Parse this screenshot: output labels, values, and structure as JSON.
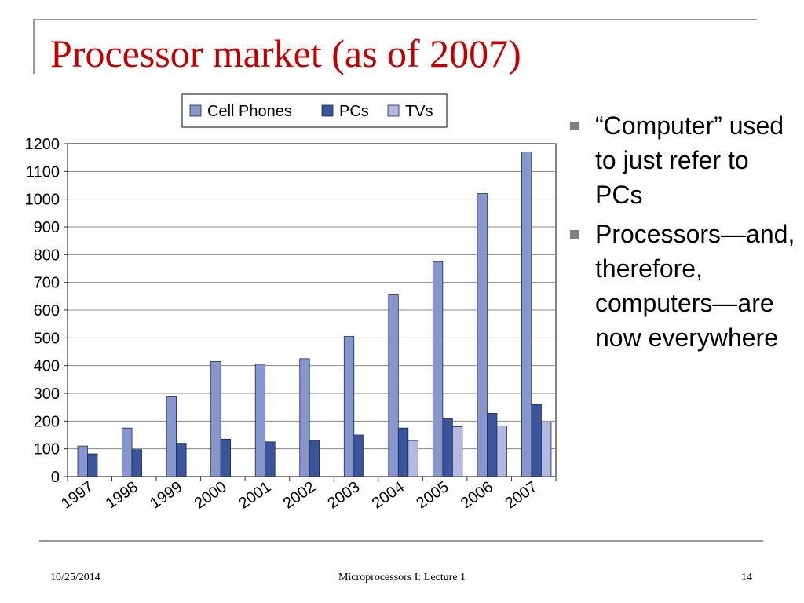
{
  "slide": {
    "title": "Processor market (as of 2007)",
    "bullets": [
      "“Computer” used to just refer to PCs",
      "Processors—and, therefore, computers—are now everywhere"
    ],
    "footer": {
      "date": "10/25/2014",
      "center": "Microprocessors I:  Lecture 1",
      "page": "14"
    }
  },
  "chart_data": {
    "type": "bar",
    "title": "",
    "xlabel": "",
    "ylabel": "",
    "categories": [
      "1997",
      "1998",
      "1999",
      "2000",
      "2001",
      "2002",
      "2003",
      "2004",
      "2005",
      "2006",
      "2007"
    ],
    "series": [
      {
        "name": "Cell Phones",
        "color": "#8796cc",
        "values": [
          110,
          175,
          290,
          415,
          405,
          425,
          505,
          655,
          775,
          1020,
          1170
        ]
      },
      {
        "name": "PCs",
        "color": "#3a5599",
        "values": [
          82,
          97,
          120,
          135,
          125,
          130,
          150,
          175,
          208,
          228,
          260
        ]
      },
      {
        "name": "TVs",
        "color": "#b3b9e0",
        "values": [
          null,
          null,
          null,
          null,
          null,
          null,
          null,
          130,
          180,
          183,
          197
        ]
      }
    ],
    "ylim": [
      0,
      1200
    ],
    "yticks": [
      0,
      100,
      200,
      300,
      400,
      500,
      600,
      700,
      800,
      900,
      1000,
      1100,
      1200
    ],
    "grid": true,
    "legend_position": "top"
  }
}
